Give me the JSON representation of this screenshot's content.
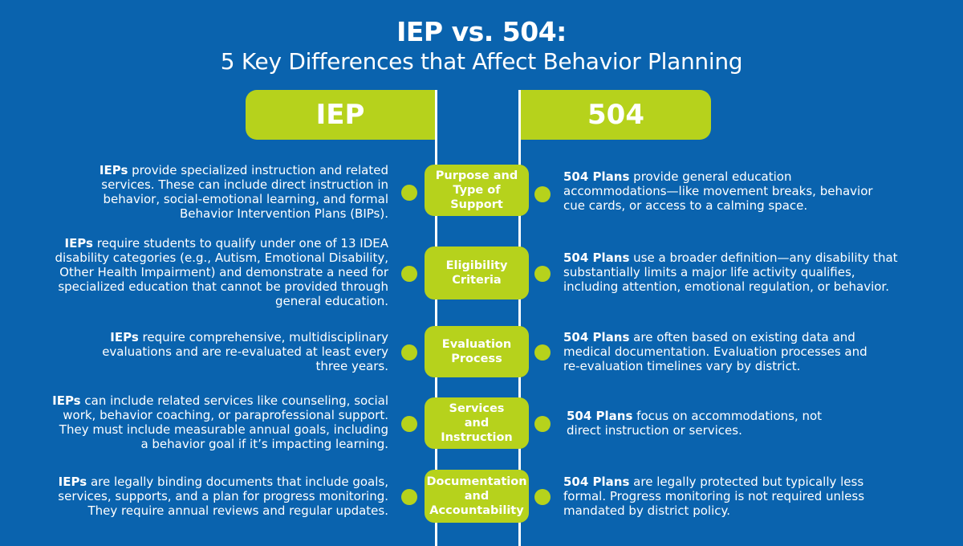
{
  "header": {
    "title": "IEP vs. 504:",
    "subtitle": "5 Key Differences that Affect Behavior Planning"
  },
  "columns": {
    "left": "IEP",
    "right": "504"
  },
  "colors": {
    "background": "#0a63ae",
    "accent": "#b6d21c",
    "text": "#ffffff"
  },
  "rows": [
    {
      "category_lines": [
        "Purpose and",
        "Type of",
        "Support"
      ],
      "iep_bold": "IEPs",
      "iep_lines": [
        " provide specialized instruction and related",
        "services. These can include direct instruction in",
        "behavior,  social-emotional learning, and formal",
        "Behavior Intervention Plans (BIPs)."
      ],
      "p504_bold": "504 Plans",
      "p504_lines": [
        "  provide general education",
        "accommodations—like movement breaks, behavior",
        "cue cards, or access to a calming space."
      ]
    },
    {
      "category_lines": [
        "Eligibility",
        "Criteria"
      ],
      "iep_bold": "IEPs",
      "iep_lines": [
        " require students to qualify under one of 13 IDEA",
        "disability categories (e.g., Autism, Emotional Disability,",
        "Other Health Impairment) and demonstrate a need for",
        "specialized education that cannot be provided through",
        "general education."
      ],
      "p504_bold": "504 Plans",
      "p504_lines": [
        " use a broader definition—any disability that",
        "substantially limits a major life activity qualifies,",
        "including attention, emotional regulation, or behavior."
      ]
    },
    {
      "category_lines": [
        "Evaluation",
        "Process"
      ],
      "iep_bold": "IEPs",
      "iep_lines": [
        " require comprehensive, multidisciplinary",
        "evaluations and are re-evaluated at least every",
        "three years."
      ],
      "p504_bold": "504 Plans",
      "p504_lines": [
        " are often based on existing data and",
        "medical documentation. Evaluation processes and",
        "re-evaluation timelines vary by district."
      ]
    },
    {
      "category_lines": [
        "Services",
        "and",
        "Instruction"
      ],
      "iep_bold": "IEPs",
      "iep_lines": [
        " can include related services like counseling, social",
        "work, behavior coaching, or paraprofessional support.",
        "They must include measurable annual goals, including",
        "a behavior goal if it’s impacting learning."
      ],
      "p504_bold": "504 Plans",
      "p504_lines": [
        " focus on accommodations, not",
        "direct instruction or services."
      ]
    },
    {
      "category_lines": [
        "Documentation",
        "and",
        "Accountability"
      ],
      "iep_bold": "IEPs",
      "iep_lines": [
        " are legally binding documents that include goals,",
        "services, supports, and a plan for progress monitoring.",
        "They require annual reviews and regular updates."
      ],
      "p504_bold": "504 Plans",
      "p504_lines": [
        " are legally protected but typically less",
        "formal. Progress monitoring is not required unless",
        "mandated by district policy."
      ]
    }
  ]
}
